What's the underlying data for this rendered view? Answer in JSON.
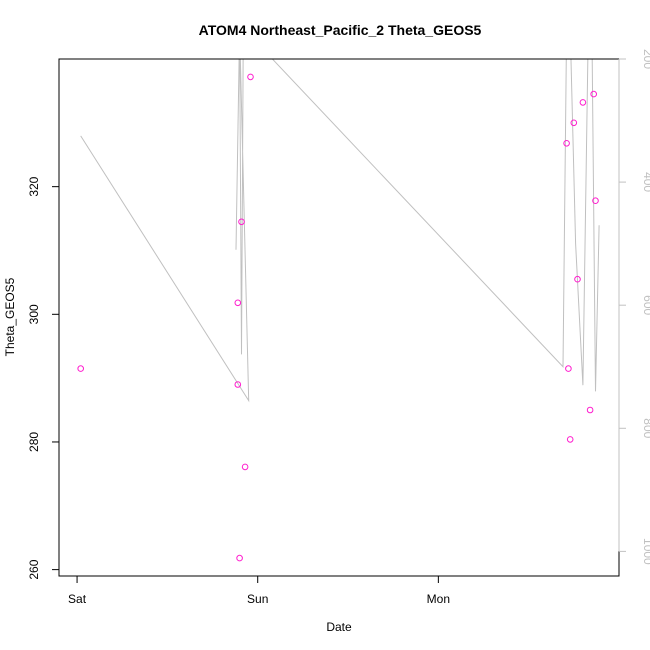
{
  "chart_data": {
    "type": "scatter",
    "title": "ATOM4 Northeast_Pacific_2 Theta_GEOS5",
    "xlabel": "Date",
    "ylabel": "Theta_GEOS5",
    "x_ticks": [
      {
        "label": "Sat",
        "value": 0.0
      },
      {
        "label": "Sun",
        "value": 1.0
      },
      {
        "label": "Mon",
        "value": 2.0
      }
    ],
    "xlim": [
      -0.1,
      3.0
    ],
    "ylim": [
      259,
      340
    ],
    "y_ticks": [
      260,
      280,
      300,
      320
    ],
    "y2_ticks": [
      200,
      400,
      600,
      800,
      1000
    ],
    "y2lim": [
      1040,
      200
    ],
    "grid": false,
    "colors": {
      "points": "#ff1dce",
      "line": "#c0c0c0",
      "axes": "#000000",
      "right_axis": "#c0c0c0"
    },
    "series": [
      {
        "values": [
          {
            "x": 0.02,
            "y": 291.5
          },
          {
            "x": 0.89,
            "y": 301.8
          },
          {
            "x": 0.89,
            "y": 289.0
          },
          {
            "x": 0.9,
            "y": 261.8
          },
          {
            "x": 0.91,
            "y": 314.5
          },
          {
            "x": 0.93,
            "y": 276.1
          },
          {
            "x": 0.96,
            "y": 337.2
          },
          {
            "x": 2.71,
            "y": 326.8
          },
          {
            "x": 2.72,
            "y": 291.5
          },
          {
            "x": 2.73,
            "y": 280.4
          },
          {
            "x": 2.75,
            "y": 330.0
          },
          {
            "x": 2.77,
            "y": 305.5
          },
          {
            "x": 2.8,
            "y": 333.2
          },
          {
            "x": 2.84,
            "y": 285.0
          },
          {
            "x": 2.86,
            "y": 334.5
          },
          {
            "x": 2.87,
            "y": 317.8
          }
        ]
      },
      {
        "axis": "right",
        "values": [
          {
            "x": 0.02,
            "y": 325
          },
          {
            "x": 0.95,
            "y": 755
          },
          {
            "x": 0.9,
            "y": 150
          },
          {
            "x": 0.88,
            "y": 510
          },
          {
            "x": 0.9,
            "y": 150
          },
          {
            "x": 0.91,
            "y": 680
          },
          {
            "x": 0.92,
            "y": 150
          },
          {
            "x": 2.69,
            "y": 700
          },
          {
            "x": 2.71,
            "y": 150
          },
          {
            "x": 2.73,
            "y": 150
          },
          {
            "x": 2.76,
            "y": 500
          },
          {
            "x": 2.8,
            "y": 730
          },
          {
            "x": 2.83,
            "y": 150
          },
          {
            "x": 2.85,
            "y": 150
          },
          {
            "x": 2.87,
            "y": 740
          },
          {
            "x": 2.89,
            "y": 470
          }
        ]
      }
    ]
  }
}
